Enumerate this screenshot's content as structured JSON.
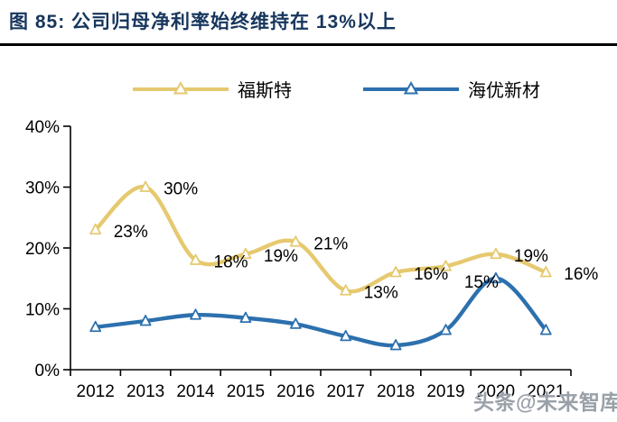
{
  "header": {
    "figure_label": "图 85:",
    "title": "图 85:  公司归母净利率始终维持在 13%以上",
    "title_color": "#17365D"
  },
  "watermark": "头条@未来智库",
  "chart_data": {
    "type": "line",
    "title": "公司归母净利率始终维持在 13%以上",
    "categories": [
      "2012",
      "2013",
      "2014",
      "2015",
      "2016",
      "2017",
      "2018",
      "2019",
      "2020",
      "2021"
    ],
    "series": [
      {
        "name": "福斯特",
        "color": "#E6C96F",
        "marker": "open-triangle",
        "smooth": true,
        "values": [
          23,
          30,
          18,
          19,
          21,
          13,
          16,
          17,
          19,
          16
        ],
        "point_labels": [
          "23%",
          "30%",
          "18%",
          "19%",
          "21%",
          "13%",
          "16%",
          "",
          "19%",
          "16%"
        ],
        "label_pos": "right"
      },
      {
        "name": "海优新材",
        "color": "#2C70AE",
        "marker": "open-triangle",
        "smooth": true,
        "values": [
          7,
          8,
          9,
          8.5,
          7.5,
          5.5,
          4,
          6.5,
          15,
          6.5
        ],
        "point_labels": [
          "",
          "",
          "",
          "",
          "",
          "",
          "",
          "",
          "15%",
          ""
        ],
        "label_pos": "left"
      }
    ],
    "xlabel": "",
    "ylabel": "",
    "ylim": [
      0,
      40
    ],
    "ytick_labels": [
      "0%",
      "10%",
      "20%",
      "30%",
      "40%"
    ],
    "legend_position": "top",
    "grid": false
  }
}
